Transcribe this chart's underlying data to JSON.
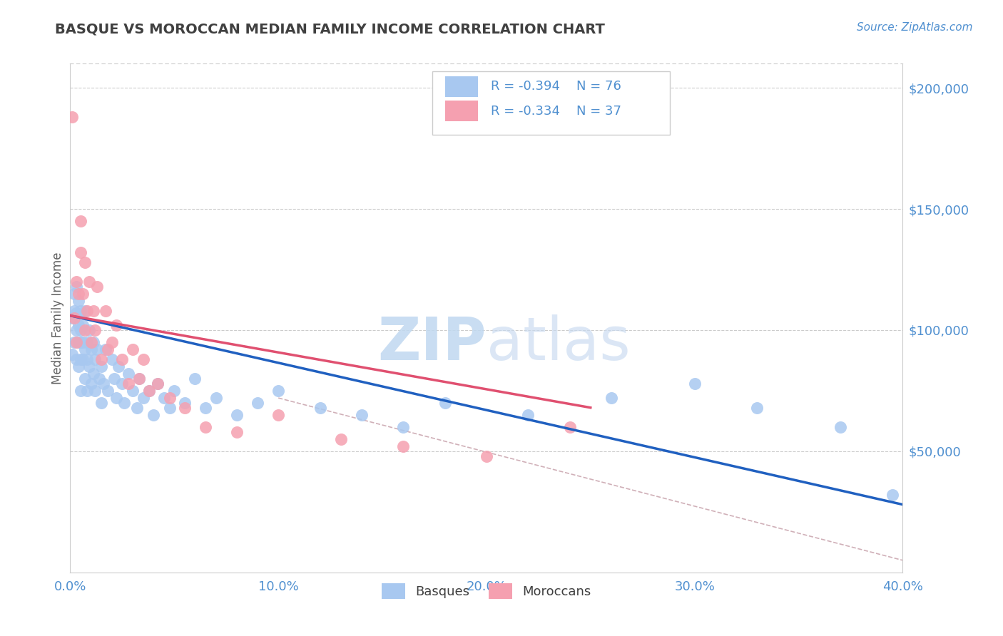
{
  "title": "BASQUE VS MOROCCAN MEDIAN FAMILY INCOME CORRELATION CHART",
  "source_text": "Source: ZipAtlas.com",
  "ylabel": "Median Family Income",
  "xlim": [
    0.0,
    0.4
  ],
  "ylim": [
    0,
    210000
  ],
  "yticks": [
    0,
    50000,
    100000,
    150000,
    200000
  ],
  "ytick_labels": [
    "",
    "$50,000",
    "$100,000",
    "$150,000",
    "$200,000"
  ],
  "xticks": [
    0.0,
    0.1,
    0.2,
    0.3,
    0.4
  ],
  "xtick_labels": [
    "0.0%",
    "10.0%",
    "20.0%",
    "30.0%",
    "40.0%"
  ],
  "basque_color": "#a8c8f0",
  "moroccan_color": "#f5a0b0",
  "basque_line_color": "#2060c0",
  "moroccan_line_color": "#e05070",
  "ref_line_color": "#d0b0b8",
  "legend_R_basque": "R = -0.394",
  "legend_N_basque": "N = 76",
  "legend_R_moroccan": "R = -0.334",
  "legend_N_moroccan": "N = 37",
  "watermark_zip": "ZIP",
  "watermark_atlas": "atlas",
  "watermark_color": "#c8daf0",
  "title_color": "#404040",
  "axis_label_color": "#606060",
  "tick_color": "#5090d0",
  "grid_color": "#cccccc",
  "basque_x": [
    0.001,
    0.001,
    0.002,
    0.002,
    0.002,
    0.003,
    0.003,
    0.003,
    0.003,
    0.004,
    0.004,
    0.004,
    0.004,
    0.005,
    0.005,
    0.005,
    0.005,
    0.005,
    0.006,
    0.006,
    0.006,
    0.007,
    0.007,
    0.007,
    0.008,
    0.008,
    0.008,
    0.009,
    0.009,
    0.01,
    0.01,
    0.011,
    0.011,
    0.012,
    0.012,
    0.013,
    0.014,
    0.015,
    0.015,
    0.016,
    0.017,
    0.018,
    0.02,
    0.021,
    0.022,
    0.023,
    0.025,
    0.026,
    0.028,
    0.03,
    0.032,
    0.033,
    0.035,
    0.038,
    0.04,
    0.042,
    0.045,
    0.048,
    0.05,
    0.055,
    0.06,
    0.065,
    0.07,
    0.08,
    0.09,
    0.1,
    0.12,
    0.14,
    0.16,
    0.18,
    0.22,
    0.26,
    0.3,
    0.33,
    0.37,
    0.395
  ],
  "basque_y": [
    105000,
    90000,
    108000,
    95000,
    115000,
    100000,
    88000,
    107000,
    118000,
    95000,
    102000,
    112000,
    85000,
    108000,
    95000,
    88000,
    100000,
    75000,
    95000,
    88000,
    102000,
    92000,
    80000,
    108000,
    95000,
    88000,
    75000,
    100000,
    85000,
    92000,
    78000,
    95000,
    82000,
    88000,
    75000,
    92000,
    80000,
    85000,
    70000,
    78000,
    92000,
    75000,
    88000,
    80000,
    72000,
    85000,
    78000,
    70000,
    82000,
    75000,
    68000,
    80000,
    72000,
    75000,
    65000,
    78000,
    72000,
    68000,
    75000,
    70000,
    80000,
    68000,
    72000,
    65000,
    70000,
    75000,
    68000,
    65000,
    60000,
    70000,
    65000,
    72000,
    78000,
    68000,
    60000,
    32000
  ],
  "moroccan_x": [
    0.001,
    0.002,
    0.003,
    0.003,
    0.004,
    0.005,
    0.005,
    0.006,
    0.007,
    0.007,
    0.008,
    0.009,
    0.01,
    0.011,
    0.012,
    0.013,
    0.015,
    0.017,
    0.018,
    0.02,
    0.022,
    0.025,
    0.028,
    0.03,
    0.033,
    0.035,
    0.038,
    0.042,
    0.048,
    0.055,
    0.065,
    0.08,
    0.1,
    0.13,
    0.16,
    0.2,
    0.24
  ],
  "moroccan_y": [
    188000,
    105000,
    120000,
    95000,
    115000,
    145000,
    132000,
    115000,
    128000,
    100000,
    108000,
    120000,
    95000,
    108000,
    100000,
    118000,
    88000,
    108000,
    92000,
    95000,
    102000,
    88000,
    78000,
    92000,
    80000,
    88000,
    75000,
    78000,
    72000,
    68000,
    60000,
    58000,
    65000,
    55000,
    52000,
    48000,
    60000
  ],
  "blue_line_x0": 0.0,
  "blue_line_y0": 106000,
  "blue_line_x1": 0.4,
  "blue_line_y1": 28000,
  "pink_line_x0": 0.0,
  "pink_line_y0": 106000,
  "pink_line_x1": 0.25,
  "pink_line_y1": 68000,
  "ref_line_x0": 0.1,
  "ref_line_y0": 72000,
  "ref_line_x1": 0.4,
  "ref_line_y1": 5000
}
